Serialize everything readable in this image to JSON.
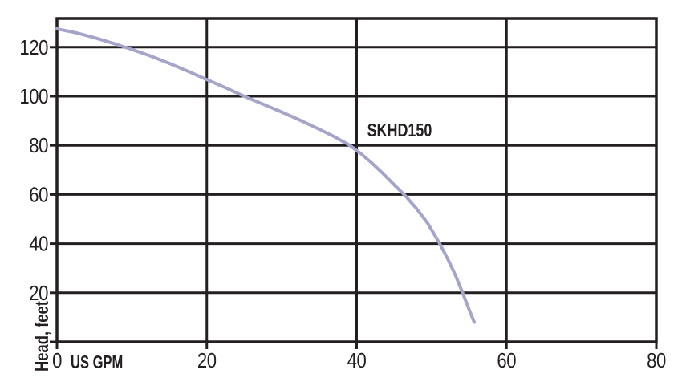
{
  "chart_data": {
    "type": "line",
    "title": "",
    "x_axis": {
      "label": "US GPM",
      "lim": [
        0,
        80
      ],
      "ticks": [
        {
          "value": 0,
          "label": "0"
        },
        {
          "value": 20,
          "label": "20"
        },
        {
          "value": 40,
          "label": "40"
        },
        {
          "value": 60,
          "label": "60"
        },
        {
          "value": 80,
          "label": "80"
        }
      ]
    },
    "y_axis": {
      "label": "Head, feet",
      "lim": [
        0,
        131.7
      ],
      "ticks": [
        {
          "value": 0,
          "label": ""
        },
        {
          "value": 20,
          "label": "20"
        },
        {
          "value": 40,
          "label": "40"
        },
        {
          "value": 60,
          "label": "60"
        },
        {
          "value": 80,
          "label": "80"
        },
        {
          "value": 100,
          "label": "100"
        },
        {
          "value": 120,
          "label": "120"
        }
      ]
    },
    "grid": true,
    "legend": "none",
    "series": [
      {
        "name": "SKHD150",
        "color": "#a5a4cb",
        "points": [
          [
            0,
            127.5
          ],
          [
            2.5,
            125.9
          ],
          [
            5,
            123.9
          ],
          [
            7.5,
            121.6
          ],
          [
            10,
            119.1
          ],
          [
            12.5,
            116.4
          ],
          [
            15,
            113.4
          ],
          [
            17.5,
            110.2
          ],
          [
            20,
            106.8
          ],
          [
            22.5,
            103.5
          ],
          [
            25,
            100
          ],
          [
            27.5,
            96.8
          ],
          [
            30,
            93.6
          ],
          [
            32.5,
            90.2
          ],
          [
            35,
            86.6
          ],
          [
            37,
            83.6
          ],
          [
            39,
            80.2
          ],
          [
            40.5,
            76.8
          ],
          [
            42,
            72.9
          ],
          [
            43.5,
            68.6
          ],
          [
            45,
            64
          ],
          [
            46.5,
            59.5
          ],
          [
            48,
            54.2
          ],
          [
            49.5,
            48.2
          ],
          [
            51,
            40.5
          ],
          [
            52.2,
            33.5
          ],
          [
            53.2,
            27
          ],
          [
            54.2,
            19.5
          ],
          [
            55.1,
            12.5
          ],
          [
            55.7,
            8
          ]
        ]
      }
    ],
    "annotation": {
      "text": "SKHD150",
      "x_gpm": 41.4,
      "y_feet": 83.7
    }
  },
  "colors": {
    "background": "#ffffff",
    "grid": "#231f20",
    "border": "#231f20",
    "text": "#231f20",
    "curve": "#a5a4cb"
  }
}
